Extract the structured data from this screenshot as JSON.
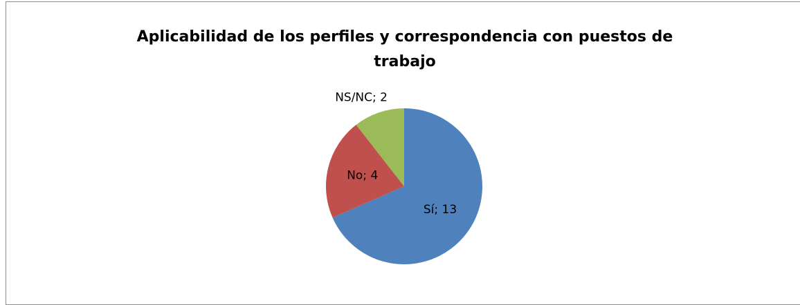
{
  "chart_data": {
    "type": "pie",
    "title": "Aplicabilidad de los perfiles y correspondencia con puestos de trabajo",
    "values": [
      13,
      4,
      2
    ],
    "value_labels": [
      "Sí; 13",
      "No; 4",
      "NS/NC; 2"
    ],
    "colors": [
      "#4f81bd",
      "#c0504d",
      "#9bbb59"
    ]
  }
}
